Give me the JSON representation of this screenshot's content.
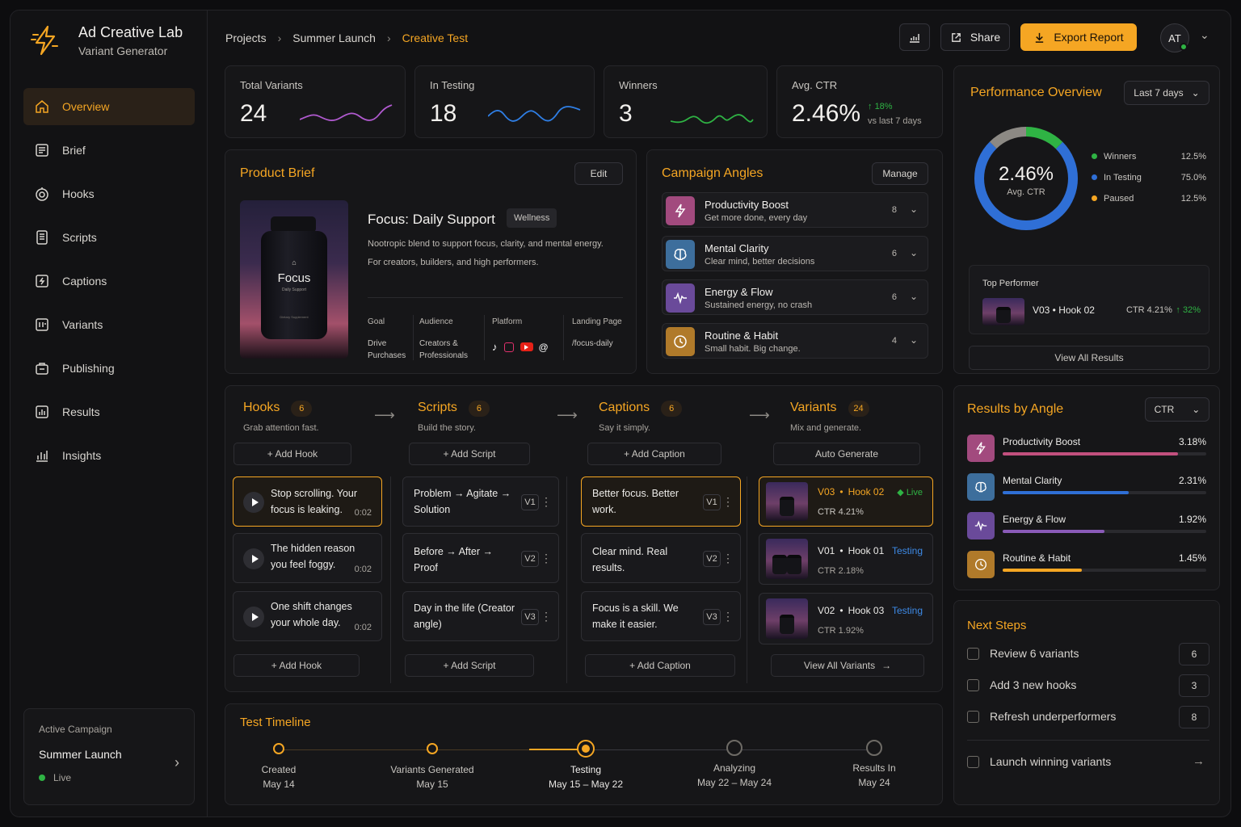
{
  "brand": {
    "title": "Ad Creative Lab",
    "subtitle": "Variant Generator"
  },
  "nav": [
    {
      "label": "Overview",
      "icon": "home-icon"
    },
    {
      "label": "Brief",
      "icon": "document-icon"
    },
    {
      "label": "Hooks",
      "icon": "hook-icon"
    },
    {
      "label": "Scripts",
      "icon": "script-icon"
    },
    {
      "label": "Captions",
      "icon": "caption-icon"
    },
    {
      "label": "Variants",
      "icon": "variants-icon"
    },
    {
      "label": "Publishing",
      "icon": "publishing-icon"
    },
    {
      "label": "Results",
      "icon": "results-icon"
    },
    {
      "label": "Insights",
      "icon": "insights-icon"
    }
  ],
  "campaign": {
    "label": "Active Campaign",
    "name": "Summer Launch",
    "status": "Live"
  },
  "breadcrumb": [
    "Projects",
    "Summer Launch",
    "Creative Test"
  ],
  "header": {
    "share": "Share",
    "export": "Export Report",
    "avatar": "AT"
  },
  "stats": [
    {
      "label": "Total Variants",
      "value": "24"
    },
    {
      "label": "In Testing",
      "value": "18"
    },
    {
      "label": "Winners",
      "value": "3"
    },
    {
      "label": "Avg. CTR",
      "value": "2.46%",
      "delta": "18%",
      "delta_note": "vs last 7 days"
    }
  ],
  "brief": {
    "title": "Product Brief",
    "edit": "Edit",
    "product": "Focus: Daily Support",
    "tag": "Wellness",
    "desc1": "Nootropic blend to support focus, clarity, and mental energy.",
    "desc2": "For creators, builders, and high performers.",
    "jar_label": "Focus",
    "jar_sub": "Daily Support",
    "jar_small": "Dietary Supplement",
    "goal_label": "Goal",
    "goal": "Drive Purchases",
    "audience_label": "Audience",
    "audience": "Creators & Professionals",
    "platform_label": "Platform",
    "landing_label": "Landing Page",
    "landing": "/focus-daily"
  },
  "angles": {
    "title": "Campaign Angles",
    "manage": "Manage",
    "items": [
      {
        "name": "Productivity Boost",
        "desc": "Get more done, every day",
        "count": "8",
        "color": "#a24a7e"
      },
      {
        "name": "Mental Clarity",
        "desc": "Clear mind, better decisions",
        "count": "6",
        "color": "#3d6e9c"
      },
      {
        "name": "Energy & Flow",
        "desc": "Sustained energy, no crash",
        "count": "6",
        "color": "#6a4a9a"
      },
      {
        "name": "Routine & Habit",
        "desc": "Small habit. Big change.",
        "count": "4",
        "color": "#b07a2a"
      }
    ]
  },
  "hooks": {
    "title": "Hooks",
    "count": "6",
    "sub": "Grab attention fast.",
    "add": "+ Add Hook",
    "items": [
      {
        "text": "Stop scrolling. Your focus is leaking.",
        "dur": "0:02"
      },
      {
        "text": "The hidden reason you feel foggy.",
        "dur": "0:02"
      },
      {
        "text": "One shift changes your whole day.",
        "dur": "0:02"
      }
    ]
  },
  "scripts": {
    "title": "Scripts",
    "count": "6",
    "sub": "Build the story.",
    "add": "+ Add Script",
    "items": [
      {
        "text": "Problem → Agitate → Solution",
        "v": "V1"
      },
      {
        "text": "Before → After → Proof",
        "v": "V2"
      },
      {
        "text": "Day in the life (Creator angle)",
        "v": "V3"
      }
    ]
  },
  "captions": {
    "title": "Captions",
    "count": "6",
    "sub": "Say it simply.",
    "add": "+ Add Caption",
    "items": [
      {
        "text": "Better focus. Better work.",
        "v": "V1"
      },
      {
        "text": "Clear mind. Real results.",
        "v": "V2"
      },
      {
        "text": "Focus is a skill. We make it easier.",
        "v": "V3"
      }
    ]
  },
  "variants": {
    "title": "Variants",
    "count": "24",
    "sub": "Mix and generate.",
    "auto": "Auto Generate",
    "view_all": "View All Variants",
    "items": [
      {
        "id": "V03",
        "hook": "Hook 02",
        "status": "Live",
        "ctr": "CTR 4.21%"
      },
      {
        "id": "V01",
        "hook": "Hook 01",
        "status": "Testing",
        "ctr": "CTR 2.18%"
      },
      {
        "id": "V02",
        "hook": "Hook 03",
        "status": "Testing",
        "ctr": "CTR 1.92%"
      }
    ]
  },
  "timeline": {
    "title": "Test Timeline",
    "steps": [
      {
        "label": "Created",
        "date": "May 14"
      },
      {
        "label": "Variants Generated",
        "date": "May 15"
      },
      {
        "label": "Testing",
        "date": "May 15 – May 22"
      },
      {
        "label": "Analyzing",
        "date": "May 22 – May 24"
      },
      {
        "label": "Results In",
        "date": "May 24"
      }
    ]
  },
  "performance": {
    "title": "Performance Overview",
    "range": "Last 7 days",
    "center_value": "2.46%",
    "center_label": "Avg. CTR",
    "legend": [
      {
        "name": "Winners",
        "value": "12.5%",
        "color": "#2fb344"
      },
      {
        "name": "In Testing",
        "value": "75.0%",
        "color": "#2f6fd6"
      },
      {
        "name": "Paused",
        "value": "12.5%",
        "color": "#f5a623"
      }
    ],
    "top_label": "Top Performer",
    "top_variant": "V03 • Hook 02",
    "top_ctr": "CTR 4.21%",
    "top_delta": "32%",
    "view_all": "View All Results"
  },
  "results": {
    "title": "Results by Angle",
    "metric": "CTR",
    "items": [
      {
        "name": "Productivity Boost",
        "value": "3.18%",
        "pct": 0.86,
        "color": "#c2507e",
        "bg": "#a24a7e"
      },
      {
        "name": "Mental Clarity",
        "value": "2.31%",
        "pct": 0.62,
        "color": "#2f6fd6",
        "bg": "#3d6e9c"
      },
      {
        "name": "Energy & Flow",
        "value": "1.92%",
        "pct": 0.5,
        "color": "#8a5ab8",
        "bg": "#6a4a9a"
      },
      {
        "name": "Routine & Habit",
        "value": "1.45%",
        "pct": 0.39,
        "color": "#f5a623",
        "bg": "#b07a2a"
      }
    ]
  },
  "next_steps": {
    "title": "Next Steps",
    "items": [
      {
        "label": "Review 6 variants",
        "count": "6"
      },
      {
        "label": "Add 3 new hooks",
        "count": "3"
      },
      {
        "label": "Refresh underperformers",
        "count": "8"
      },
      {
        "label": "Launch winning variants"
      }
    ]
  }
}
